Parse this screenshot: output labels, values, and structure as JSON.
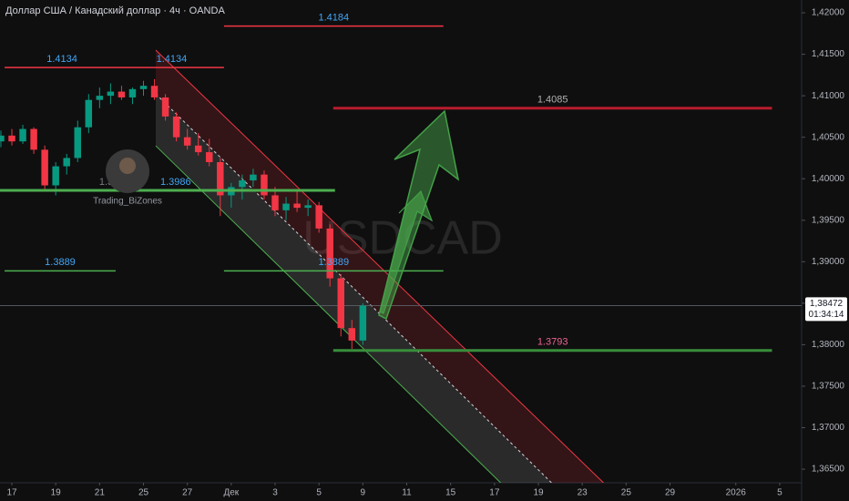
{
  "chart_data": {
    "type": "candlestick",
    "title": "Доллар США / Канадский доллар · 4ч · OANDA",
    "watermark": "USDCAD",
    "author": "Trading_BiZones",
    "up_color": "#089981",
    "down_color": "#f23645",
    "grid": false,
    "xlim": [
      -0.54,
      36
    ],
    "ylim": [
      1.36336,
      1.42154
    ],
    "xticks": [
      {
        "value": 0,
        "label": "17"
      },
      {
        "value": 2,
        "label": "19"
      },
      {
        "value": 4,
        "label": "21"
      },
      {
        "value": 6,
        "label": "25"
      },
      {
        "value": 8,
        "label": "27"
      },
      {
        "value": 10,
        "label": "Дек"
      },
      {
        "value": 12,
        "label": "3"
      },
      {
        "value": 14,
        "label": "5"
      },
      {
        "value": 16,
        "label": "9"
      },
      {
        "value": 18,
        "label": "11"
      },
      {
        "value": 20,
        "label": "15"
      },
      {
        "value": 22,
        "label": "17"
      },
      {
        "value": 24,
        "label": "19"
      },
      {
        "value": 26,
        "label": "23"
      },
      {
        "value": 28,
        "label": "25"
      },
      {
        "value": 30,
        "label": "29"
      },
      {
        "value": 33,
        "label": "2026"
      },
      {
        "value": 35,
        "label": "5"
      }
    ],
    "yticks": [
      {
        "value": 1.42,
        "label": "1,42000"
      },
      {
        "value": 1.415,
        "label": "1,41500"
      },
      {
        "value": 1.41,
        "label": "1,41000"
      },
      {
        "value": 1.405,
        "label": "1,40500"
      },
      {
        "value": 1.4,
        "label": "1,40000"
      },
      {
        "value": 1.395,
        "label": "1,39500"
      },
      {
        "value": 1.39,
        "label": "1,39000"
      },
      {
        "value": 1.385,
        "label": "1,38500"
      },
      {
        "value": 1.38,
        "label": "1,38000"
      },
      {
        "value": 1.375,
        "label": "1,37500"
      },
      {
        "value": 1.37,
        "label": "1,37000"
      },
      {
        "value": 1.365,
        "label": "1,36500"
      }
    ],
    "candles": {
      "x": [
        -0.5,
        0,
        0.5,
        1,
        1.5,
        2,
        2.5,
        3,
        3.5,
        4,
        4.5,
        5,
        5.5,
        6,
        6.5,
        7,
        7.5,
        8,
        8.5,
        9,
        9.5,
        10,
        10.5,
        11,
        11.5,
        12,
        12.5,
        13,
        13.5,
        14,
        14.5,
        15,
        15.5,
        16
      ],
      "open": [
        1.4045,
        1.4052,
        1.4045,
        1.406,
        1.4035,
        1.3992,
        1.4015,
        1.4025,
        1.4062,
        1.4095,
        1.41,
        1.4105,
        1.4098,
        1.4108,
        1.4112,
        1.4098,
        1.4075,
        1.405,
        1.404,
        1.4032,
        1.402,
        1.398,
        1.399,
        1.3998,
        1.4005,
        1.398,
        1.3962,
        1.397,
        1.3965,
        1.3968,
        1.394,
        1.388,
        1.382,
        1.3805
      ],
      "high": [
        1.4058,
        1.406,
        1.4065,
        1.4062,
        1.404,
        1.402,
        1.403,
        1.407,
        1.4102,
        1.411,
        1.4115,
        1.4112,
        1.411,
        1.4118,
        1.412,
        1.4102,
        1.408,
        1.406,
        1.4055,
        1.4048,
        1.4025,
        1.3995,
        1.4005,
        1.4012,
        1.401,
        1.399,
        1.3978,
        1.3985,
        1.3975,
        1.3972,
        1.3945,
        1.3885,
        1.383,
        1.385
      ],
      "low": [
        1.4038,
        1.404,
        1.4042,
        1.403,
        1.3985,
        1.398,
        1.4005,
        1.402,
        1.4055,
        1.4085,
        1.409,
        1.4095,
        1.409,
        1.41,
        1.4095,
        1.407,
        1.4045,
        1.4035,
        1.4028,
        1.4015,
        1.3955,
        1.3965,
        1.3975,
        1.399,
        1.3975,
        1.3955,
        1.395,
        1.396,
        1.3955,
        1.3935,
        1.387,
        1.381,
        1.3795,
        1.38
      ],
      "close": [
        1.4052,
        1.4045,
        1.406,
        1.4035,
        1.3992,
        1.4015,
        1.4025,
        1.4062,
        1.4095,
        1.41,
        1.4105,
        1.4098,
        1.4108,
        1.4112,
        1.4098,
        1.4075,
        1.405,
        1.404,
        1.4032,
        1.402,
        1.398,
        1.399,
        1.3998,
        1.4005,
        1.398,
        1.3962,
        1.397,
        1.3965,
        1.3968,
        1.394,
        1.388,
        1.382,
        1.3805,
        1.3847
      ]
    },
    "levels": [
      {
        "value": 1.4184,
        "x": [
          9.67,
          19.67
        ],
        "color": "#f23645",
        "label_color": "#42a5f5",
        "width": 1.5
      },
      {
        "value": 1.4134,
        "x": [
          -0.33,
          4.9
        ],
        "color": "#f23645",
        "label_color": "#42a5f5",
        "width": 1.5
      },
      {
        "value": 1.4134,
        "x": [
          4.9,
          9.67
        ],
        "color": "#f23645",
        "label_color": "#42a5f5",
        "width": 1.5
      },
      {
        "value": 1.4085,
        "x": [
          14.65,
          34.65
        ],
        "color": "#b71c2c",
        "label_color": "#b0b0b0",
        "width": 3
      },
      {
        "value": 1.3986,
        "x": [
          -0.54,
          9.9
        ],
        "color": "#4caf50",
        "label_color": "#787b86",
        "width": 3
      },
      {
        "value": 1.3986,
        "x": [
          0.2,
          14.73
        ],
        "color": "#4caf50",
        "label_color": "#42a5f5",
        "width": 3
      },
      {
        "value": 1.3889,
        "x": [
          -0.33,
          4.73
        ],
        "color": "#4caf50",
        "label_color": "#42a5f5",
        "width": 1.5
      },
      {
        "value": 1.3889,
        "x": [
          9.67,
          19.67
        ],
        "color": "#4caf50",
        "label_color": "#42a5f5",
        "width": 1.5
      },
      {
        "value": 1.3793,
        "x": [
          14.65,
          34.65
        ],
        "color": "#388e3c",
        "label_color": "#f06292",
        "width": 3
      }
    ],
    "channel": {
      "upper": {
        "x": [
          6.56,
          26.97
        ],
        "y": [
          1.4155,
          1.36336
        ]
      },
      "middle": {
        "x": [
          6.56,
          24.6
        ],
        "y": [
          1.41023,
          1.36336
        ]
      },
      "lower": {
        "x": [
          6.56,
          22.28
        ],
        "y": [
          1.40397,
          1.36336
        ]
      }
    },
    "current_price": {
      "value": 1.38472,
      "label": "1,38472",
      "countdown": "01:34:14"
    }
  }
}
